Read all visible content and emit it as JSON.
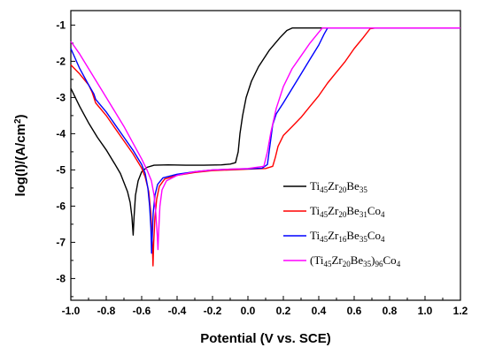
{
  "chart_data": {
    "type": "line",
    "title": "",
    "xlabel": "Potential (V vs. SCE)",
    "ylabel_parts": [
      "log(I)/(A/cm",
      "2",
      ")"
    ],
    "xlim": [
      -1.0,
      1.2
    ],
    "ylim": [
      -8.6,
      -0.6
    ],
    "x_ticks": [
      -1.0,
      -0.8,
      -0.6,
      -0.4,
      -0.2,
      0.0,
      0.2,
      0.4,
      0.6,
      0.8,
      1.0,
      1.2
    ],
    "x_tick_labels": [
      "-1.0",
      "-0.8",
      "-0.6",
      "-0.4",
      "-0.2",
      "0.0",
      "0.2",
      "0.4",
      "0.6",
      "0.8",
      "1.0",
      "1.2"
    ],
    "y_ticks": [
      -1,
      -2,
      -3,
      -4,
      -5,
      -6,
      -7,
      -8
    ],
    "y_tick_labels": [
      "-1",
      "-2",
      "-3",
      "-4",
      "-5",
      "-6",
      "-7",
      "-8"
    ],
    "grid": false,
    "legend_position": "bottom-right",
    "series": [
      {
        "color": "#000000",
        "legend": [
          {
            "t": "Ti"
          },
          {
            "t": "45",
            "sub": true
          },
          {
            "t": "Zr"
          },
          {
            "t": "20",
            "sub": true
          },
          {
            "t": "Be"
          },
          {
            "t": "35",
            "sub": true
          }
        ],
        "points": [
          [
            -1.0,
            -2.75
          ],
          [
            -0.95,
            -3.25
          ],
          [
            -0.9,
            -3.7
          ],
          [
            -0.85,
            -4.1
          ],
          [
            -0.8,
            -4.45
          ],
          [
            -0.75,
            -4.85
          ],
          [
            -0.72,
            -5.1
          ],
          [
            -0.7,
            -5.35
          ],
          [
            -0.68,
            -5.6
          ],
          [
            -0.665,
            -5.9
          ],
          [
            -0.655,
            -6.3
          ],
          [
            -0.648,
            -6.8
          ],
          [
            -0.643,
            -6.3
          ],
          [
            -0.635,
            -5.7
          ],
          [
            -0.62,
            -5.3
          ],
          [
            -0.6,
            -5.05
          ],
          [
            -0.57,
            -4.93
          ],
          [
            -0.53,
            -4.87
          ],
          [
            -0.45,
            -4.86
          ],
          [
            -0.35,
            -4.87
          ],
          [
            -0.25,
            -4.87
          ],
          [
            -0.15,
            -4.86
          ],
          [
            -0.1,
            -4.84
          ],
          [
            -0.07,
            -4.8
          ],
          [
            -0.055,
            -4.5
          ],
          [
            -0.045,
            -4.0
          ],
          [
            -0.03,
            -3.5
          ],
          [
            -0.01,
            -3.0
          ],
          [
            0.02,
            -2.55
          ],
          [
            0.06,
            -2.15
          ],
          [
            0.12,
            -1.7
          ],
          [
            0.18,
            -1.35
          ],
          [
            0.22,
            -1.15
          ],
          [
            0.25,
            -1.08
          ],
          [
            0.32,
            -1.08
          ],
          [
            0.45,
            -1.08
          ]
        ]
      },
      {
        "color": "#ff0000",
        "legend": [
          {
            "t": "Ti"
          },
          {
            "t": "45",
            "sub": true
          },
          {
            "t": "Zr"
          },
          {
            "t": "20",
            "sub": true
          },
          {
            "t": "Be"
          },
          {
            "t": "31",
            "sub": true
          },
          {
            "t": "Co"
          },
          {
            "t": "4",
            "sub": true
          }
        ],
        "points": [
          [
            -1.0,
            -2.1
          ],
          [
            -0.95,
            -2.35
          ],
          [
            -0.9,
            -2.65
          ],
          [
            -0.88,
            -2.85
          ],
          [
            -0.86,
            -3.15
          ],
          [
            -0.8,
            -3.5
          ],
          [
            -0.75,
            -3.85
          ],
          [
            -0.7,
            -4.2
          ],
          [
            -0.65,
            -4.55
          ],
          [
            -0.6,
            -4.95
          ],
          [
            -0.58,
            -5.2
          ],
          [
            -0.56,
            -5.6
          ],
          [
            -0.548,
            -6.2
          ],
          [
            -0.54,
            -7.0
          ],
          [
            -0.536,
            -7.65
          ],
          [
            -0.532,
            -7.0
          ],
          [
            -0.525,
            -6.3
          ],
          [
            -0.515,
            -5.8
          ],
          [
            -0.5,
            -5.45
          ],
          [
            -0.47,
            -5.25
          ],
          [
            -0.4,
            -5.15
          ],
          [
            -0.3,
            -5.07
          ],
          [
            -0.2,
            -5.02
          ],
          [
            -0.1,
            -5.0
          ],
          [
            0.0,
            -4.98
          ],
          [
            0.1,
            -4.96
          ],
          [
            0.14,
            -4.9
          ],
          [
            0.155,
            -4.65
          ],
          [
            0.17,
            -4.35
          ],
          [
            0.2,
            -4.05
          ],
          [
            0.25,
            -3.8
          ],
          [
            0.3,
            -3.55
          ],
          [
            0.35,
            -3.25
          ],
          [
            0.4,
            -2.95
          ],
          [
            0.45,
            -2.6
          ],
          [
            0.5,
            -2.3
          ],
          [
            0.55,
            -2.0
          ],
          [
            0.6,
            -1.65
          ],
          [
            0.65,
            -1.35
          ],
          [
            0.69,
            -1.1
          ],
          [
            0.72,
            -1.08
          ],
          [
            1.2,
            -1.08
          ]
        ]
      },
      {
        "color": "#0000ff",
        "legend": [
          {
            "t": "Ti"
          },
          {
            "t": "45",
            "sub": true
          },
          {
            "t": "Zr"
          },
          {
            "t": "16",
            "sub": true
          },
          {
            "t": "Be"
          },
          {
            "t": "35",
            "sub": true
          },
          {
            "t": "Co"
          },
          {
            "t": "4",
            "sub": true
          }
        ],
        "points": [
          [
            -1.0,
            -1.65
          ],
          [
            -0.95,
            -2.2
          ],
          [
            -0.9,
            -2.65
          ],
          [
            -0.87,
            -2.9
          ],
          [
            -0.86,
            -3.05
          ],
          [
            -0.8,
            -3.4
          ],
          [
            -0.75,
            -3.75
          ],
          [
            -0.7,
            -4.1
          ],
          [
            -0.65,
            -4.45
          ],
          [
            -0.6,
            -4.85
          ],
          [
            -0.58,
            -5.1
          ],
          [
            -0.565,
            -5.5
          ],
          [
            -0.555,
            -6.0
          ],
          [
            -0.548,
            -6.6
          ],
          [
            -0.544,
            -7.3
          ],
          [
            -0.54,
            -6.8
          ],
          [
            -0.535,
            -6.2
          ],
          [
            -0.525,
            -5.7
          ],
          [
            -0.51,
            -5.4
          ],
          [
            -0.48,
            -5.22
          ],
          [
            -0.4,
            -5.12
          ],
          [
            -0.3,
            -5.05
          ],
          [
            -0.2,
            -5.0
          ],
          [
            -0.1,
            -4.98
          ],
          [
            0.0,
            -4.97
          ],
          [
            0.08,
            -4.95
          ],
          [
            0.11,
            -4.85
          ],
          [
            0.125,
            -4.3
          ],
          [
            0.14,
            -3.75
          ],
          [
            0.16,
            -3.45
          ],
          [
            0.2,
            -3.15
          ],
          [
            0.25,
            -2.75
          ],
          [
            0.3,
            -2.35
          ],
          [
            0.35,
            -1.95
          ],
          [
            0.4,
            -1.55
          ],
          [
            0.43,
            -1.25
          ],
          [
            0.45,
            -1.08
          ],
          [
            0.5,
            -1.08
          ],
          [
            1.2,
            -1.08
          ]
        ]
      },
      {
        "color": "#ff00ff",
        "legend": [
          {
            "t": "(Ti"
          },
          {
            "t": "45",
            "sub": true
          },
          {
            "t": "Zr"
          },
          {
            "t": "20",
            "sub": true
          },
          {
            "t": "Be"
          },
          {
            "t": "35",
            "sub": true
          },
          {
            "t": ")"
          },
          {
            "t": "96",
            "sub": true
          },
          {
            "t": "Co"
          },
          {
            "t": "4",
            "sub": true
          }
        ],
        "points": [
          [
            -1.0,
            -1.45
          ],
          [
            -0.95,
            -1.8
          ],
          [
            -0.9,
            -2.2
          ],
          [
            -0.85,
            -2.6
          ],
          [
            -0.8,
            -3.0
          ],
          [
            -0.75,
            -3.4
          ],
          [
            -0.7,
            -3.8
          ],
          [
            -0.65,
            -4.25
          ],
          [
            -0.6,
            -4.7
          ],
          [
            -0.57,
            -5.0
          ],
          [
            -0.545,
            -5.3
          ],
          [
            -0.53,
            -5.7
          ],
          [
            -0.52,
            -6.2
          ],
          [
            -0.512,
            -6.8
          ],
          [
            -0.508,
            -7.2
          ],
          [
            -0.504,
            -6.7
          ],
          [
            -0.497,
            -6.0
          ],
          [
            -0.485,
            -5.55
          ],
          [
            -0.46,
            -5.3
          ],
          [
            -0.4,
            -5.15
          ],
          [
            -0.3,
            -5.05
          ],
          [
            -0.2,
            -5.0
          ],
          [
            -0.1,
            -4.98
          ],
          [
            0.0,
            -4.96
          ],
          [
            0.09,
            -4.9
          ],
          [
            0.11,
            -4.5
          ],
          [
            0.13,
            -3.95
          ],
          [
            0.16,
            -3.3
          ],
          [
            0.2,
            -2.7
          ],
          [
            0.25,
            -2.2
          ],
          [
            0.3,
            -1.85
          ],
          [
            0.35,
            -1.5
          ],
          [
            0.4,
            -1.2
          ],
          [
            0.42,
            -1.08
          ],
          [
            0.5,
            -1.08
          ],
          [
            1.2,
            -1.08
          ]
        ]
      }
    ]
  }
}
